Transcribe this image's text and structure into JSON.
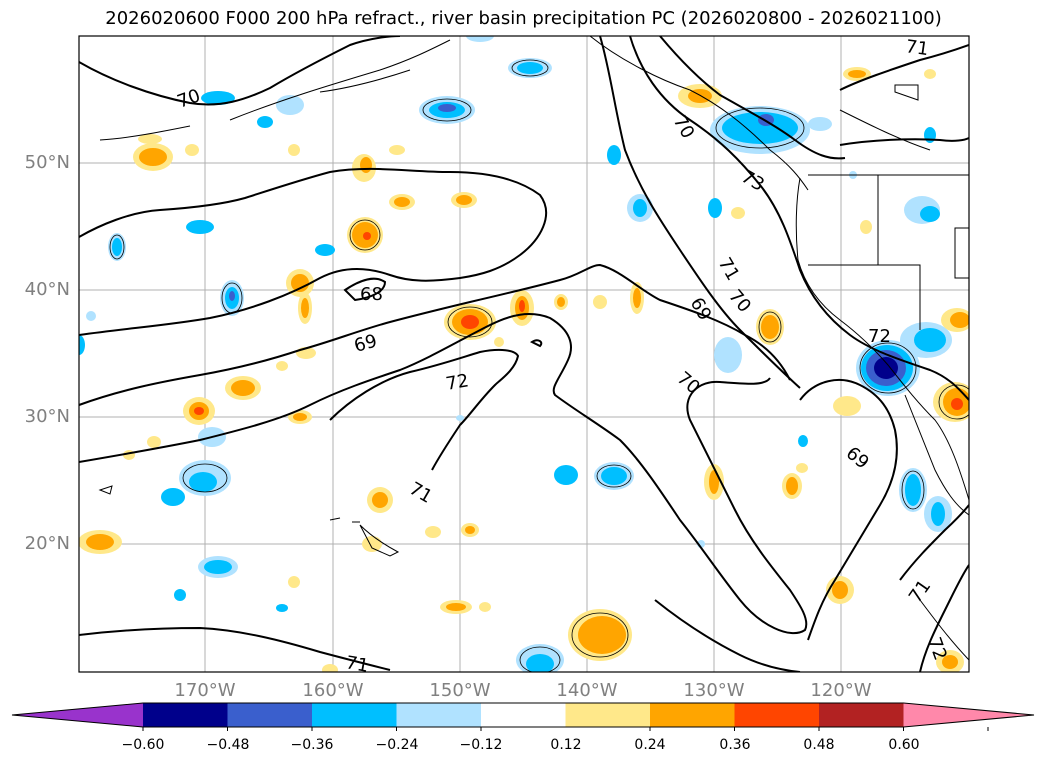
{
  "title": "2026020600 F000 200 hPa refract., river basin precipitation PC (2026020800 - 2026021100)",
  "lat_labels": [
    "50°N",
    "40°N",
    "30°N",
    "20°N"
  ],
  "lon_labels": [
    "170°W",
    "160°W",
    "150°W",
    "140°W",
    "130°W",
    "120°W"
  ],
  "colorbar": {
    "ticks": [
      "−0.60",
      "−0.48",
      "−0.36",
      "−0.24",
      "−0.12",
      "0.12",
      "0.24",
      "0.36",
      "0.48",
      "0.60"
    ],
    "colors": [
      "#9933cc",
      "#00008b",
      "#3a5fcd",
      "#00bfff",
      "#b0e2ff",
      "#ffffff",
      "#ffe88a",
      "#ffa500",
      "#ff4500",
      "#b22222",
      "#ff88aa"
    ]
  },
  "contour_labels": [
    "70",
    "71",
    "70",
    "73",
    "71",
    "70",
    "69",
    "68",
    "69",
    "72",
    "70",
    "72",
    "69",
    "71",
    "71",
    "71",
    "72"
  ],
  "colors": {
    "pos_light": "#ffe88a",
    "pos_mid": "#ffa500",
    "pos_strong": "#ff4500",
    "neg_light": "#b0e2ff",
    "neg_mid": "#00bfff",
    "neg_strong": "#3a5fcd",
    "neg_max": "#00008b"
  }
}
